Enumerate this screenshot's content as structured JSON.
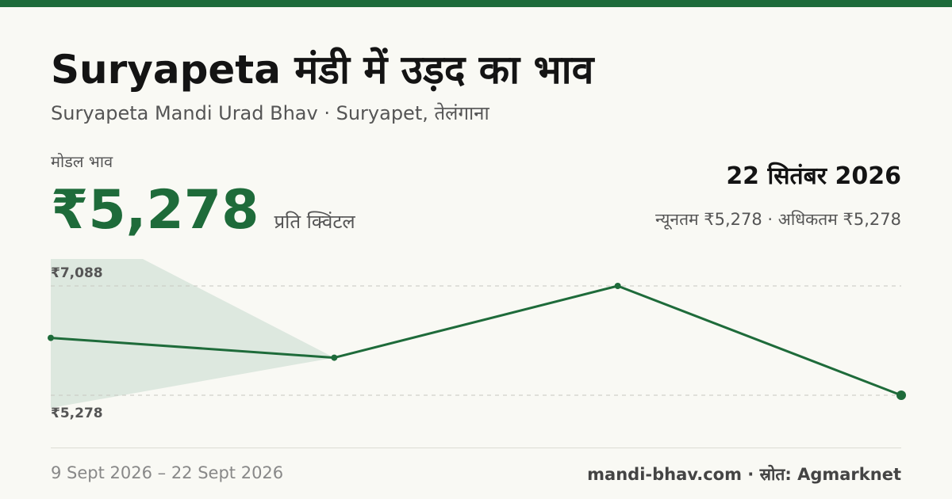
{
  "header": {
    "title": "Suryapeta मंडी में उड़द का भाव",
    "subtitle": "Suryapeta Mandi Urad Bhav · Suryapet, तेलंगाना"
  },
  "price": {
    "label": "मोडल भाव",
    "value": "₹5,278",
    "unit": "प्रति क्विंटल",
    "date": "22 सितंबर 2026",
    "minmax": "न्यूनतम ₹5,278 · अधिकतम ₹5,278"
  },
  "chart_data": {
    "type": "line",
    "x": [
      "9 Sept 2026",
      "",
      "",
      "22 Sept 2026"
    ],
    "values": [
      6228,
      5900,
      7088,
      5278
    ],
    "ylim": [
      5278,
      7088
    ],
    "y_ticks": [
      {
        "value": 7088,
        "label": "₹7,088"
      },
      {
        "value": 5278,
        "label": "₹5,278"
      }
    ],
    "line_color": "#1e6b3a",
    "band_color": "#dde8df",
    "grid": true
  },
  "footer": {
    "range": "9 Sept 2026 – 22 Sept 2026",
    "source": "mandi-bhav.com · स्रोत: Agmarknet"
  }
}
